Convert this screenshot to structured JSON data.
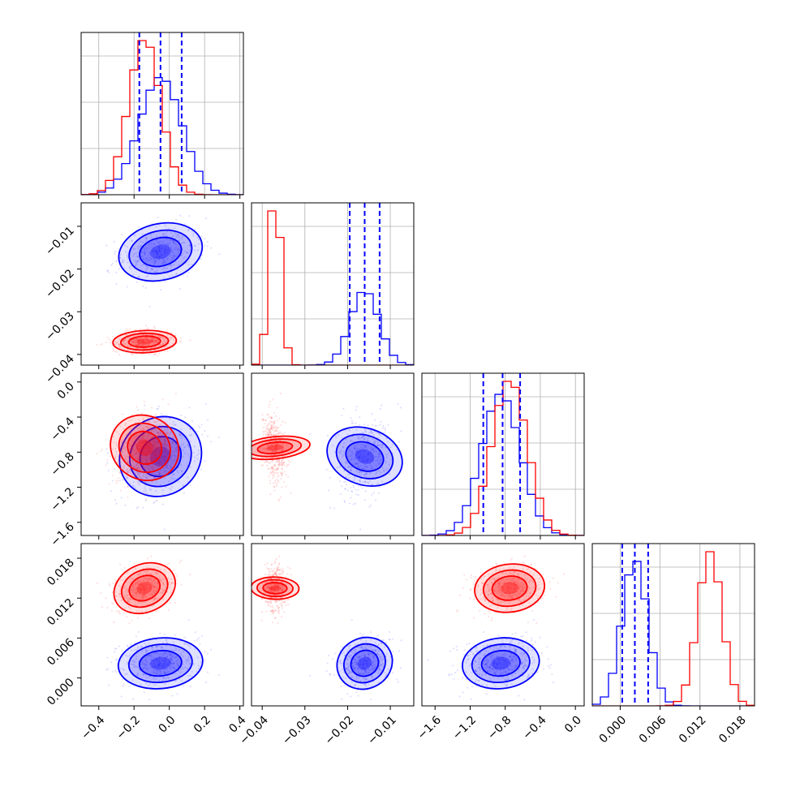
{
  "colors": {
    "blue": "#0000ff",
    "red": "#ff0000",
    "grid": "#b0b0b0"
  },
  "chart_data": {
    "type": "corner",
    "grid": true,
    "parameters": 4,
    "series": [
      {
        "color": "#0000ff",
        "means": [
          -0.05,
          -0.016,
          -0.85,
          0.0022
        ],
        "sds": [
          0.12,
          0.0033,
          0.22,
          0.0019
        ],
        "corr": [
          [
            1,
            0.2,
            0.3,
            0.1
          ],
          [
            0.2,
            1,
            0.25,
            0.15
          ],
          [
            0.3,
            0.25,
            1,
            0.1
          ],
          [
            0.1,
            0.15,
            0.1,
            1
          ]
        ],
        "quantiles": [
          [
            -0.17,
            -0.05,
            0.07
          ],
          [
            -0.0195,
            -0.016,
            -0.0125
          ],
          [
            -1.05,
            -0.83,
            -0.63
          ],
          [
            0.0003,
            0.0022,
            0.0042
          ]
        ]
      },
      {
        "color": "#ff0000",
        "means": [
          -0.14,
          -0.037,
          -0.75,
          0.0135
        ],
        "sds": [
          0.09,
          0.0013,
          0.2,
          0.0018
        ],
        "corr": [
          [
            1,
            0.1,
            0.2,
            0.3
          ],
          [
            0.1,
            1,
            -0.3,
            0.05
          ],
          [
            0.2,
            -0.3,
            1,
            0.1
          ],
          [
            0.3,
            0.05,
            0.1,
            1
          ]
        ]
      }
    ],
    "ranges": [
      [
        -0.5,
        0.42
      ],
      [
        -0.0425,
        -0.0045
      ],
      [
        -1.75,
        0.1
      ],
      [
        -0.0042,
        0.0202
      ]
    ],
    "ticks": [
      {
        "values": [
          -0.4,
          -0.2,
          0.0,
          0.2,
          0.4
        ],
        "labels": [
          "−0.4",
          "−0.2",
          "0.0",
          "0.2",
          "0.4"
        ]
      },
      {
        "values": [
          -0.04,
          -0.03,
          -0.02,
          -0.01
        ],
        "labels": [
          "−0.04",
          "−0.03",
          "−0.02",
          "−0.01"
        ]
      },
      {
        "values": [
          -1.6,
          -1.2,
          -0.8,
          -0.4,
          0.0
        ],
        "labels": [
          "−1.6",
          "−1.2",
          "−0.8",
          "−0.4",
          "0.0"
        ]
      },
      {
        "values": [
          0.0,
          0.006,
          0.012,
          0.018
        ],
        "labels": [
          "0.000",
          "0.006",
          "0.012",
          "0.018"
        ]
      }
    ]
  }
}
